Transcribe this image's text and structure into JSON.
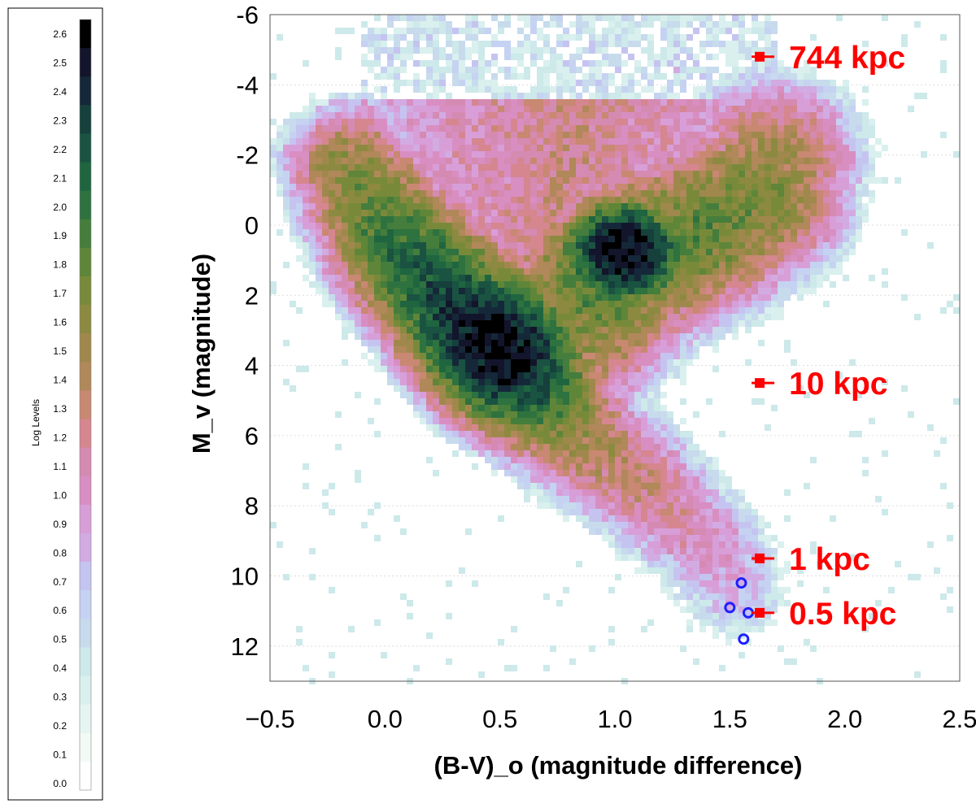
{
  "chart_data": {
    "type": "heatmap",
    "title": "",
    "xlabel": "(B-V)_o (magnitude difference)",
    "ylabel": "M_v (magnitude)",
    "xlim": [
      -0.5,
      2.5
    ],
    "ylim": [
      -6,
      13
    ],
    "y_inverted": true,
    "x_ticks": [
      -0.5,
      0.0,
      0.5,
      1.0,
      1.5,
      2.0,
      2.5
    ],
    "x_tick_labels": [
      "−0.5",
      "0.0",
      "0.5",
      "1.0",
      "1.5",
      "2.0",
      "2.5"
    ],
    "y_ticks": [
      -6,
      -4,
      -2,
      0,
      2,
      4,
      6,
      8,
      10,
      12
    ],
    "y_tick_labels": [
      "-6",
      "-4",
      "-2",
      "0",
      "2",
      "4",
      "6",
      "8",
      "10",
      "12"
    ],
    "grid": true,
    "colorbar": {
      "title": "Log Levels",
      "levels": [
        "0.0",
        "0.1",
        "0.2",
        "0.3",
        "0.4",
        "0.5",
        "0.6",
        "0.7",
        "0.8",
        "0.9",
        "1.0",
        "1.1",
        "1.2",
        "1.3",
        "1.4",
        "1.5",
        "1.6",
        "1.7",
        "1.8",
        "1.9",
        "2.0",
        "2.1",
        "2.2",
        "2.3",
        "2.4",
        "2.5",
        "2.6"
      ],
      "colors": [
        "#ffffff",
        "#f3faf6",
        "#e6f5f1",
        "#d9f0ee",
        "#cde9ea",
        "#c7dbed",
        "#c6d2f2",
        "#c5c4f0",
        "#d2abe3",
        "#d89ed8",
        "#d98ec2",
        "#d58ab2",
        "#d5868f",
        "#c88872",
        "#b08859",
        "#a0884d",
        "#8c8a40",
        "#788a3a",
        "#5f8638",
        "#457d3c",
        "#2e723f",
        "#1f6540",
        "#1a5342",
        "#15403c",
        "#152839",
        "#12152b",
        "#000000"
      ]
    },
    "density_model": {
      "main_sequence": [
        {
          "bv": -0.15,
          "mv": -1.6,
          "level": 1.6
        },
        {
          "bv": -0.05,
          "mv": -0.6,
          "level": 1.8
        },
        {
          "bv": 0.05,
          "mv": 0.4,
          "level": 2.0
        },
        {
          "bv": 0.15,
          "mv": 1.2,
          "level": 2.15
        },
        {
          "bv": 0.25,
          "mv": 1.9,
          "level": 2.25
        },
        {
          "bv": 0.35,
          "mv": 2.6,
          "level": 2.4
        },
        {
          "bv": 0.45,
          "mv": 3.2,
          "level": 2.6
        },
        {
          "bv": 0.52,
          "mv": 3.7,
          "level": 2.6
        },
        {
          "bv": 0.6,
          "mv": 4.3,
          "level": 2.3
        },
        {
          "bv": 0.7,
          "mv": 5.0,
          "level": 1.9
        },
        {
          "bv": 0.8,
          "mv": 5.7,
          "level": 1.6
        },
        {
          "bv": 0.9,
          "mv": 6.3,
          "level": 1.45
        },
        {
          "bv": 1.0,
          "mv": 6.8,
          "level": 1.35
        },
        {
          "bv": 1.1,
          "mv": 7.3,
          "level": 1.3
        },
        {
          "bv": 1.2,
          "mv": 7.9,
          "level": 1.2
        },
        {
          "bv": 1.3,
          "mv": 8.5,
          "level": 1.1
        },
        {
          "bv": 1.4,
          "mv": 9.1,
          "level": 1.0
        },
        {
          "bv": 1.48,
          "mv": 9.8,
          "level": 0.9
        },
        {
          "bv": 1.52,
          "mv": 10.4,
          "level": 0.75
        }
      ],
      "red_clump": {
        "bv": 1.04,
        "mv": 0.8,
        "level": 2.6
      },
      "giant_branch": [
        {
          "bv": 0.85,
          "mv": 2.8,
          "level": 1.65
        },
        {
          "bv": 0.95,
          "mv": 1.6,
          "level": 1.9
        },
        {
          "bv": 1.2,
          "mv": 0.6,
          "level": 1.85
        },
        {
          "bv": 1.4,
          "mv": 0.0,
          "level": 1.8
        },
        {
          "bv": 1.6,
          "mv": -0.8,
          "level": 1.7
        },
        {
          "bv": 1.68,
          "mv": -1.8,
          "level": 1.5
        }
      ]
    }
  },
  "distance_markers": [
    {
      "label": "744 kpc",
      "bv": 1.63,
      "mv": -4.8
    },
    {
      "label": "10 kpc",
      "bv": 1.63,
      "mv": 4.5
    },
    {
      "label": "1 kpc",
      "bv": 1.63,
      "mv": 9.5
    },
    {
      "label": "0.5 kpc",
      "bv": 1.63,
      "mv": 11.05
    }
  ],
  "blue_points": [
    {
      "bv": 1.55,
      "mv": 10.2
    },
    {
      "bv": 1.5,
      "mv": 10.9
    },
    {
      "bv": 1.58,
      "mv": 11.05
    },
    {
      "bv": 1.56,
      "mv": 11.8
    }
  ],
  "colors": {
    "marker": "#ff0000",
    "blue_point": "#1f1fff"
  }
}
